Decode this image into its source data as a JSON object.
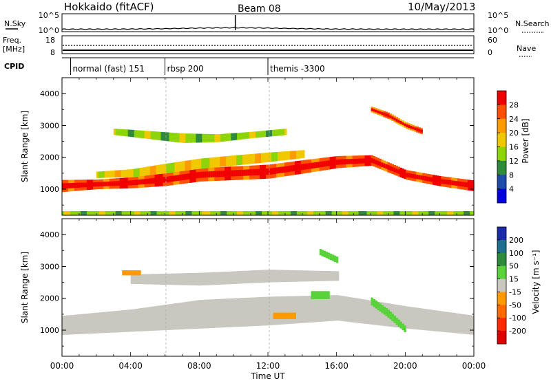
{
  "header": {
    "station": "Hokkaido (fitACF)",
    "beam": "Beam 08",
    "date": "10/May/2013"
  },
  "top_panels": {
    "nsky": {
      "label": "N.Sky",
      "ticks": [
        "10^5",
        "10^0"
      ],
      "right_ticks": [
        "10^5",
        "10^0"
      ],
      "right_label": "N.Search"
    },
    "freq": {
      "label_line1": "Freq.",
      "label_line2": "[MHz]",
      "ticks": [
        "18",
        "8"
      ],
      "right_ticks": [
        "60",
        "0"
      ],
      "right_label": "Nave"
    },
    "cpid": {
      "label": "CPID",
      "modes": [
        {
          "name": "normal (fast) 151",
          "start_hour": 0.5
        },
        {
          "name": "rbsp 200",
          "start_hour": 6.0
        },
        {
          "name": "themis -3300",
          "start_hour": 12.0
        }
      ]
    }
  },
  "axes": {
    "x_label": "Time UT",
    "x_ticks": [
      "00:00",
      "04:00",
      "08:00",
      "12:00",
      "16:00",
      "20:00",
      "00:00"
    ],
    "x_range_hours": [
      0,
      24
    ],
    "y_label": "Slant Range [km]",
    "y_ticks": [
      "1000",
      "2000",
      "3000",
      "4000"
    ],
    "y_range_km": [
      180,
      4500
    ]
  },
  "colorbars": {
    "power": {
      "label": "Power [dB]",
      "ticks": [
        "28",
        "24",
        "20",
        "16",
        "12",
        "8",
        "4"
      ],
      "colors": [
        "#f00000",
        "#ff5000",
        "#ff9a00",
        "#f0c800",
        "#8ed40a",
        "#2e8b3e",
        "#1e4ca8",
        "#0000e0"
      ]
    },
    "velocity": {
      "label": "Velocity [m s⁻¹]",
      "ticks": [
        "200",
        "100",
        "50",
        "15",
        "-15",
        "-50",
        "-100",
        "-200"
      ],
      "colors": [
        "#1b2aa8",
        "#1e6e8e",
        "#2e8b3e",
        "#5ad23c",
        "#c8c8c0",
        "#ff9a00",
        "#ff6a00",
        "#ff2a00",
        "#e00000"
      ]
    }
  },
  "chart_data": [
    {
      "type": "heatmap",
      "title": "Power",
      "xlabel": "Time UT",
      "ylabel": "Slant Range [km]",
      "xlim": [
        0,
        24
      ],
      "ylim": [
        180,
        4500
      ],
      "bands": [
        {
          "t": [
            0,
            2,
            4,
            6,
            8,
            10,
            12,
            14,
            16,
            18,
            20,
            22,
            24
          ],
          "center_km": [
            1100,
            1150,
            1200,
            1300,
            1450,
            1500,
            1550,
            1700,
            1850,
            1900,
            1450,
            1250,
            1100
          ],
          "width_km": [
            380,
            300,
            350,
            400,
            420,
            430,
            440,
            420,
            380,
            330,
            300,
            320,
            340
          ],
          "level": 1
        },
        {
          "t": [
            2,
            4,
            6,
            8,
            10,
            12,
            14
          ],
          "center_km": [
            1450,
            1500,
            1650,
            1800,
            1900,
            2000,
            2100
          ],
          "width_km": [
            200,
            250,
            300,
            320,
            320,
            300,
            250
          ],
          "level": 3
        },
        {
          "t": [
            3,
            5,
            7,
            9,
            11,
            13
          ],
          "center_km": [
            2800,
            2700,
            2600,
            2600,
            2700,
            2800
          ],
          "width_km": [
            200,
            250,
            300,
            250,
            200,
            200
          ],
          "level": 4
        },
        {
          "t": [
            18,
            19,
            20,
            21
          ],
          "center_km": [
            3500,
            3300,
            3000,
            2800
          ],
          "width_km": [
            180,
            200,
            200,
            180
          ],
          "level": 2
        },
        {
          "t": [
            0,
            24
          ],
          "center_km": [
            250,
            250
          ],
          "width_km": [
            120,
            120
          ],
          "level": 4
        }
      ]
    },
    {
      "type": "heatmap",
      "title": "Velocity",
      "xlabel": "Time UT",
      "ylabel": "Slant Range [km]",
      "xlim": [
        0,
        24
      ],
      "ylim": [
        180,
        4500
      ],
      "bands": [
        {
          "t": [
            0,
            4,
            8,
            12,
            16,
            20,
            24
          ],
          "center_km": [
            1150,
            1300,
            1500,
            1600,
            1700,
            1400,
            1150
          ],
          "width_km": [
            600,
            700,
            900,
            900,
            800,
            700,
            600
          ],
          "level": 4
        },
        {
          "t": [
            4,
            8,
            12,
            16
          ],
          "center_km": [
            2600,
            2600,
            2700,
            2700
          ],
          "width_km": [
            300,
            400,
            400,
            300
          ],
          "level": 4
        },
        {
          "t": [
            14.5,
            15.5
          ],
          "center_km": [
            2100,
            2100
          ],
          "width_km": [
            250,
            250
          ],
          "level": 3
        },
        {
          "t": [
            18,
            19,
            20
          ],
          "center_km": [
            1900,
            1500,
            1000
          ],
          "width_km": [
            250,
            250,
            200
          ],
          "level": 3
        },
        {
          "t": [
            15,
            16
          ],
          "center_km": [
            3450,
            3200
          ],
          "width_km": [
            200,
            200
          ],
          "level": 3
        },
        {
          "t": [
            12.3,
            13.5
          ],
          "center_km": [
            1450,
            1450
          ],
          "width_km": [
            200,
            200
          ],
          "level": 5
        },
        {
          "t": [
            3.5,
            4.5
          ],
          "center_km": [
            2800,
            2800
          ],
          "width_km": [
            160,
            160
          ],
          "level": 5
        }
      ]
    }
  ]
}
